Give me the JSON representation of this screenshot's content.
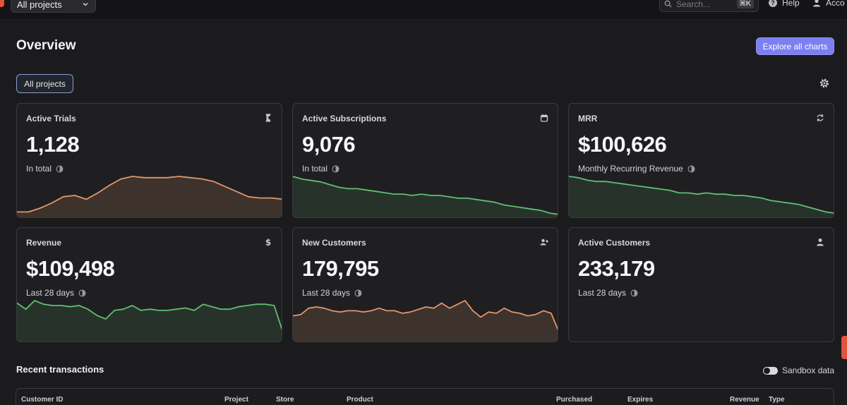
{
  "topbar": {
    "project_select": "All projects",
    "search_placeholder": "Search...",
    "search_shortcut": "⌘K",
    "help_label": "Help",
    "account_label": "Acco"
  },
  "header": {
    "title": "Overview",
    "explore_button": "Explore all charts",
    "filter_chip": "All projects"
  },
  "colors": {
    "accent": "#7b7ff0",
    "trend_up_line": "#e0966a",
    "trend_green_line": "#5fbf73"
  },
  "cards": [
    {
      "title": "Active Trials",
      "value": "1,128",
      "subtitle": "In total",
      "icon": "hourglass-icon",
      "chart_color": "orange",
      "series": [
        2,
        2,
        5,
        9,
        14,
        15,
        12,
        17,
        23,
        28,
        30,
        29,
        29,
        29,
        30,
        29,
        28,
        26,
        22,
        18,
        14,
        13,
        13,
        12
      ]
    },
    {
      "title": "Active Subscriptions",
      "value": "9,076",
      "subtitle": "In total",
      "icon": "calendar-icon",
      "chart_color": "green",
      "series": [
        28,
        26,
        25,
        24,
        22,
        20,
        19,
        19,
        18,
        17,
        16,
        15,
        15,
        14,
        15,
        14,
        14,
        13,
        12,
        12,
        11,
        10,
        9,
        7,
        6,
        5,
        4,
        3,
        1,
        0
      ]
    },
    {
      "title": "MRR",
      "value": "$100,626",
      "subtitle": "Monthly Recurring Revenue",
      "icon": "refresh-icon",
      "chart_color": "green",
      "series": [
        30,
        29,
        27,
        26,
        26,
        25,
        24,
        23,
        22,
        21,
        20,
        19,
        17,
        17,
        16,
        17,
        16,
        16,
        15,
        15,
        14,
        13,
        11,
        10,
        9,
        8,
        6,
        4,
        2,
        1
      ]
    },
    {
      "title": "Revenue",
      "value": "$109,498",
      "subtitle": "Last 28 days",
      "icon": "dollar-icon",
      "chart_color": "green",
      "series": [
        29,
        24,
        31,
        28,
        27,
        27,
        26,
        27,
        24,
        19,
        16,
        23,
        24,
        27,
        23,
        24,
        23,
        23,
        24,
        25,
        23,
        28,
        26,
        24,
        24,
        26,
        27,
        28,
        28,
        27,
        5
      ]
    },
    {
      "title": "New Customers",
      "value": "179,795",
      "subtitle": "Last 28 days",
      "icon": "add-user-icon",
      "chart_color": "orange",
      "series": [
        18,
        19,
        24,
        25,
        24,
        22,
        21,
        22,
        22,
        21,
        22,
        24,
        22,
        22,
        20,
        21,
        23,
        25,
        24,
        28,
        24,
        27,
        30,
        22,
        17,
        21,
        20,
        24,
        21,
        20,
        18,
        19,
        22,
        20,
        5
      ]
    },
    {
      "title": "Active Customers",
      "value": "233,179",
      "subtitle": "Last 28 days",
      "icon": "user-icon",
      "chart_color": "none",
      "series": []
    }
  ],
  "transactions": {
    "title": "Recent transactions",
    "sandbox_label": "Sandbox data",
    "columns": [
      "Customer ID",
      "Project",
      "Store",
      "Product",
      "Purchased",
      "Expires",
      "Revenue",
      "Type"
    ]
  }
}
